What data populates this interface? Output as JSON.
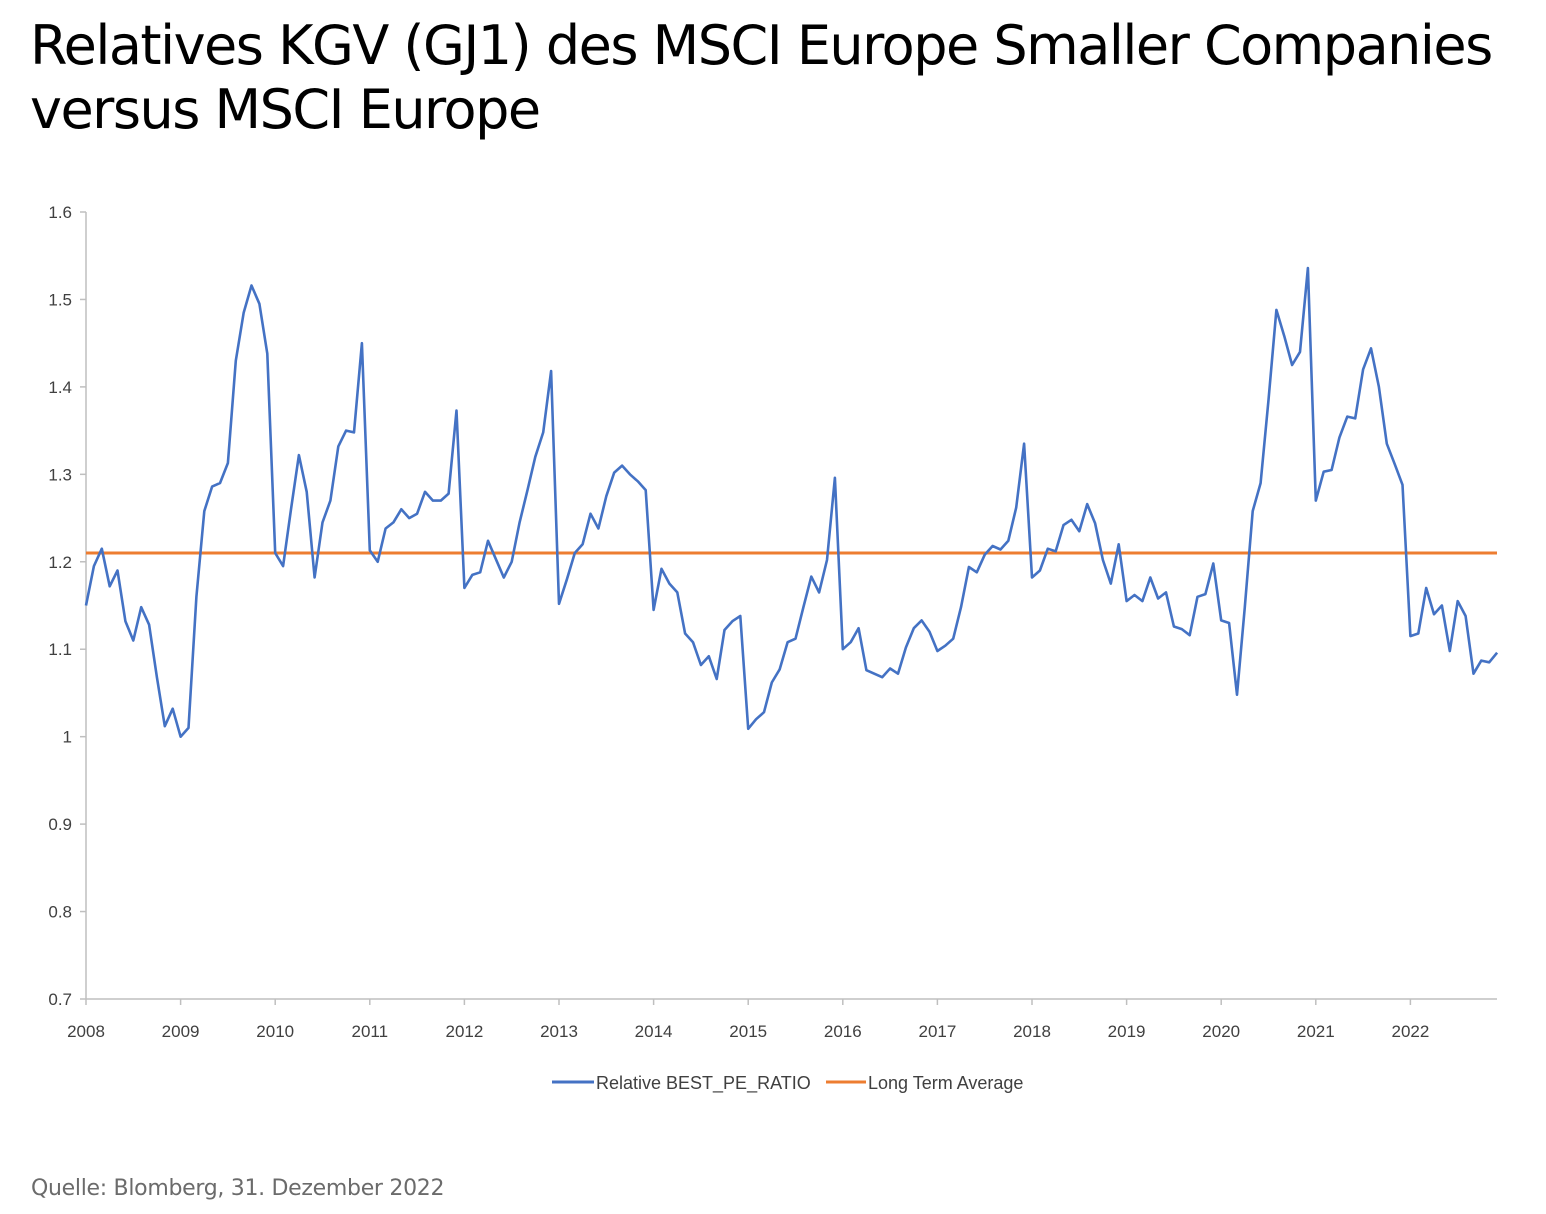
{
  "title": "Relatives KGV (GJ1) des MSCI Europe Smaller Companies versus MSCI Europe",
  "source": "Quelle: Blomberg, 31. Dezember 2022",
  "chart_data": {
    "type": "line",
    "title": "Relatives KGV (GJ1) des MSCI Europe Smaller Companies versus MSCI Europe",
    "xlabel": "",
    "ylabel": "",
    "xlim": [
      2008,
      2022.95
    ],
    "ylim": [
      0.7,
      1.6
    ],
    "yticks": [
      "0.7",
      "0.8",
      "0.9",
      "1",
      "1.1",
      "1.2",
      "1.3",
      "1.4",
      "1.5",
      "1.6"
    ],
    "xticks": [
      "2008",
      "2009",
      "2010",
      "2011",
      "2012",
      "2013",
      "2014",
      "2015",
      "2016",
      "2017",
      "2018",
      "2019",
      "2020",
      "2021",
      "2022"
    ],
    "grid": false,
    "legend_position": "bottom",
    "colors": {
      "series": "#4472c4",
      "average": "#ed7d31",
      "axis": "#bfbfbf"
    },
    "series": [
      {
        "name": "Relative BEST_PE_RATIO",
        "x_start": 2008,
        "x_step_months": 1,
        "values": [
          1.15,
          1.195,
          1.215,
          1.172,
          1.19,
          1.132,
          1.11,
          1.148,
          1.128,
          1.068,
          1.012,
          1.032,
          1.0,
          1.01,
          1.16,
          1.258,
          1.286,
          1.29,
          1.313,
          1.43,
          1.485,
          1.516,
          1.495,
          1.438,
          1.21,
          1.195,
          1.26,
          1.322,
          1.28,
          1.182,
          1.245,
          1.27,
          1.332,
          1.35,
          1.348,
          1.45,
          1.213,
          1.2,
          1.238,
          1.245,
          1.26,
          1.25,
          1.255,
          1.28,
          1.27,
          1.27,
          1.278,
          1.373,
          1.17,
          1.185,
          1.188,
          1.224,
          1.203,
          1.182,
          1.2,
          1.245,
          1.282,
          1.32,
          1.348,
          1.418,
          1.152,
          1.18,
          1.21,
          1.22,
          1.255,
          1.238,
          1.275,
          1.302,
          1.31,
          1.3,
          1.292,
          1.282,
          1.145,
          1.192,
          1.175,
          1.165,
          1.118,
          1.108,
          1.082,
          1.092,
          1.066,
          1.122,
          1.132,
          1.138,
          1.009,
          1.02,
          1.028,
          1.062,
          1.077,
          1.108,
          1.112,
          1.148,
          1.183,
          1.165,
          1.202,
          1.296,
          1.1,
          1.108,
          1.124,
          1.076,
          1.072,
          1.068,
          1.078,
          1.072,
          1.102,
          1.124,
          1.133,
          1.12,
          1.098,
          1.104,
          1.112,
          1.148,
          1.194,
          1.188,
          1.208,
          1.218,
          1.214,
          1.224,
          1.262,
          1.335,
          1.182,
          1.19,
          1.215,
          1.212,
          1.242,
          1.248,
          1.235,
          1.266,
          1.244,
          1.202,
          1.175,
          1.22,
          1.155,
          1.162,
          1.155,
          1.182,
          1.158,
          1.165,
          1.126,
          1.123,
          1.116,
          1.16,
          1.163,
          1.198,
          1.133,
          1.13,
          1.048,
          1.148,
          1.258,
          1.29,
          1.385,
          1.488,
          1.458,
          1.425,
          1.44,
          1.536,
          1.27,
          1.303,
          1.305,
          1.342,
          1.366,
          1.364,
          1.42,
          1.444,
          1.4,
          1.335,
          1.312,
          1.288,
          1.115,
          1.118,
          1.17,
          1.14,
          1.15,
          1.098,
          1.155,
          1.138,
          1.072,
          1.087,
          1.085,
          1.096
        ]
      },
      {
        "name": "Long Term Average",
        "value": 1.21
      }
    ]
  }
}
